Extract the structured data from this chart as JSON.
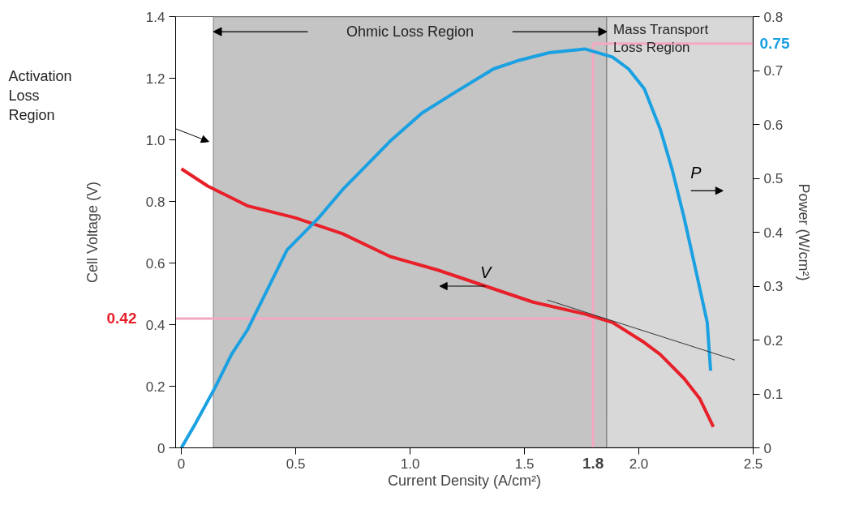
{
  "chart_data": {
    "type": "line",
    "xlabel": "Current Density (A/cm²)",
    "ylabel": "Cell Voltage (V)",
    "y2label": "Power (W/cm²)",
    "x": [
      0,
      0.115,
      0.288,
      0.497,
      0.705,
      0.913,
      1.122,
      1.33,
      1.538,
      1.767,
      1.885,
      2.024,
      2.094,
      2.198,
      2.267,
      2.326
    ],
    "series": [
      {
        "name": "V",
        "color": "#e8202a",
        "values": [
          0.906,
          0.85,
          0.786,
          0.747,
          0.695,
          0.621,
          0.577,
          0.525,
          0.473,
          0.434,
          0.407,
          0.342,
          0.303,
          0.225,
          0.159,
          0.068
        ]
      },
      {
        "name": "P",
        "color": "#1ba1e2",
        "axis": "y2",
        "x": [
          0,
          0.063,
          0.149,
          0.219,
          0.288,
          0.358,
          0.462,
          0.601,
          0.705,
          0.809,
          0.913,
          1.052,
          1.191,
          1.365,
          1.469,
          1.608,
          1.764,
          1.885,
          1.955,
          2.024,
          2.094,
          2.146,
          2.198,
          2.253,
          2.299,
          2.314
        ],
        "values": [
          0,
          0.046,
          0.113,
          0.173,
          0.218,
          0.278,
          0.367,
          0.427,
          0.479,
          0.524,
          0.569,
          0.621,
          0.658,
          0.703,
          0.718,
          0.733,
          0.74,
          0.725,
          0.703,
          0.666,
          0.591,
          0.516,
          0.427,
          0.322,
          0.233,
          0.143
        ]
      },
      {
        "color": "#333333",
        "x": [
          1.6,
          2.42
        ],
        "values": [
          0.48,
          0.285
        ]
      }
    ],
    "xlim": [
      -0.025,
      2.5
    ],
    "ylim": [
      0,
      1.4
    ],
    "y2lim": [
      0,
      0.8
    ],
    "xticks": [
      0,
      0.5,
      {
        "value": 1,
        "label": "1.0"
      },
      1.5,
      {
        "value": 2,
        "label": "2.0"
      },
      2.5
    ],
    "yticks": [
      0,
      0.2,
      0.4,
      0.6,
      0.8,
      {
        "value": 1,
        "label": "1.0"
      },
      1.2,
      1.4
    ],
    "y2ticks": [
      0,
      0.1,
      0.2,
      0.3,
      0.4,
      0.5,
      0.6,
      0.7,
      0.8
    ],
    "bands": [
      {
        "axis": "x",
        "from": 0.14,
        "to": 1.86,
        "label": "Ohmic Loss Region",
        "color": "#c4c4c4"
      },
      {
        "axis": "x",
        "from": 1.86,
        "to": 2.5,
        "label": "Mass Transport Loss Region",
        "color": "#d8d8d8"
      }
    ],
    "ref_lines": [
      {
        "axis": "y",
        "value": 0.42,
        "label": "0.42",
        "color": "#f5a8c4"
      },
      {
        "axis": "x",
        "value": 1.8,
        "label": "1.8",
        "color": "#f5a8c4"
      },
      {
        "axis": "y2",
        "value": 0.75,
        "label": "0.75",
        "color": "#f5a8c4"
      }
    ],
    "annotations": [
      "Activation Loss Region"
    ],
    "grid": false,
    "marker": "none",
    "line_style": "solid"
  }
}
